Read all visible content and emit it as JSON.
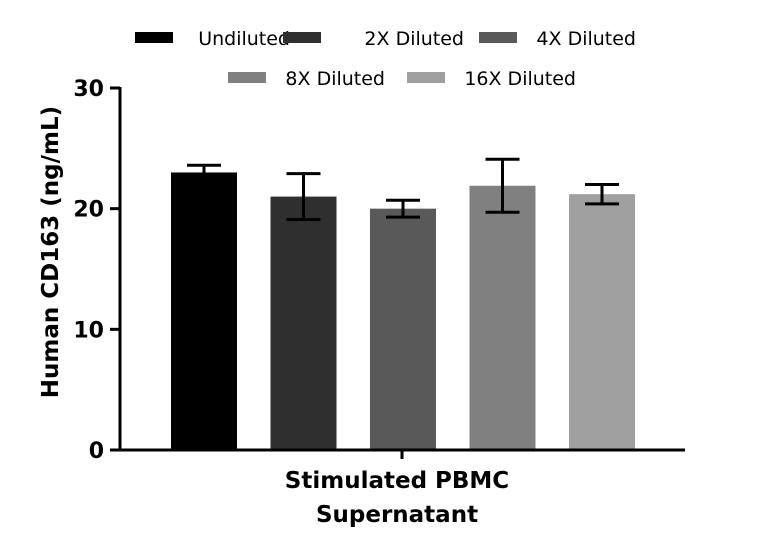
{
  "chart_data": {
    "type": "bar",
    "title": "",
    "xlabel": "Stimulated PBMC Supernatant",
    "xlabel_lines": [
      "Stimulated PBMC",
      "Supernatant"
    ],
    "ylabel": "Human CD163 (ng/mL)",
    "ylim": [
      0,
      30
    ],
    "yticks": [
      0,
      10,
      20,
      30
    ],
    "grid": false,
    "legend_position": "top",
    "series": [
      {
        "name": "Undiluted",
        "value": 23.0,
        "error": 0.6,
        "color": "#000000"
      },
      {
        "name": "2X Diluted",
        "value": 21.0,
        "error": 1.9,
        "color": "#2f2f2f"
      },
      {
        "name": "4X Diluted",
        "value": 20.0,
        "error": 0.7,
        "color": "#595959"
      },
      {
        "name": "8X Diluted",
        "value": 21.9,
        "error": 2.2,
        "color": "#808080"
      },
      {
        "name": "16X Diluted",
        "value": 21.2,
        "error": 0.8,
        "color": "#a0a0a0"
      }
    ]
  }
}
